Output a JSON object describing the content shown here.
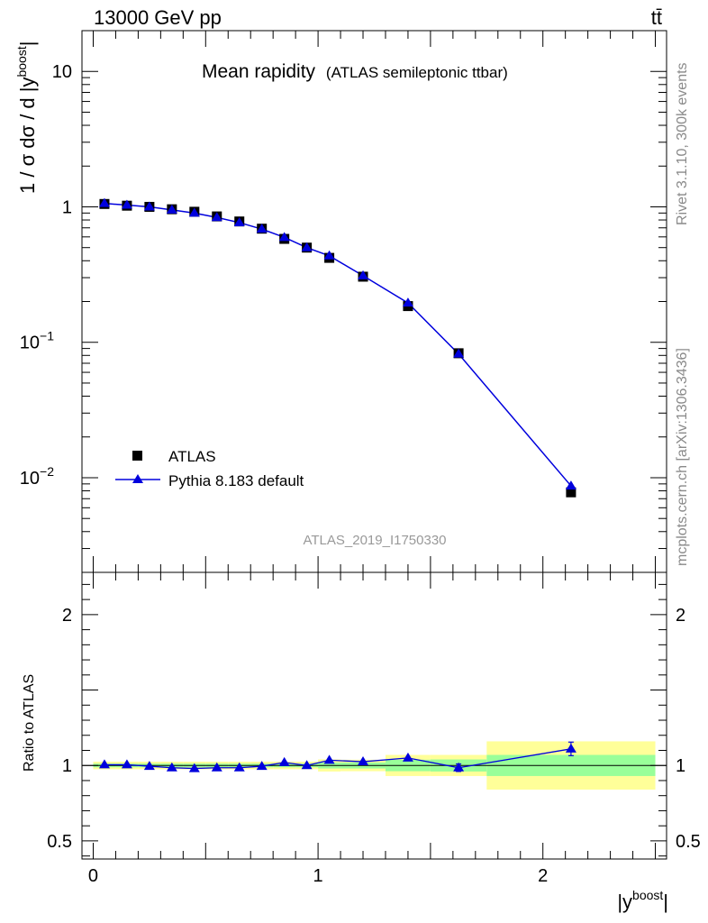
{
  "header": {
    "left": "13000 GeV pp",
    "right": "tt̄"
  },
  "side_labels": {
    "version": "Rivet 3.1.10,  300k events",
    "site": "mcplots.cern.ch [arXiv:1306.3436]"
  },
  "colors": {
    "mc": "#0000dd",
    "data": "#000000",
    "band_inner": "#99ff99",
    "band_outer": "#ffff99"
  },
  "chart_data": [
    {
      "type": "scatter",
      "panel": "main",
      "title": "Mean rapidity",
      "subtitle": "(ATLAS semileptonic ttbar)",
      "ylabel": "1 / σ dσ / d |y",
      "ylabel_sup": "boost",
      "yscale": "log",
      "ylim": [
        0.002,
        20
      ],
      "xlim": [
        -0.05,
        2.55
      ],
      "y_ticks": [
        {
          "value": 10,
          "label": "10"
        },
        {
          "value": 1,
          "label": "1"
        },
        {
          "value": 0.1,
          "label": "10",
          "sup": "−1"
        },
        {
          "value": 0.01,
          "label": "10",
          "sup": "−2"
        }
      ],
      "annotation": "ATLAS_2019_I1750330",
      "legend_position": "lower-left",
      "series": [
        {
          "name": "ATLAS",
          "marker": "square",
          "x": [
            0.05,
            0.15,
            0.25,
            0.35,
            0.45,
            0.55,
            0.65,
            0.75,
            0.85,
            0.95,
            1.05,
            1.2,
            1.4,
            1.625,
            2.125
          ],
          "y": [
            1.05,
            1.02,
            1.0,
            0.96,
            0.92,
            0.85,
            0.78,
            0.69,
            0.58,
            0.5,
            0.42,
            0.305,
            0.185,
            0.083,
            0.0078
          ]
        },
        {
          "name": "Pythia 8.183 default",
          "marker": "triangle",
          "x": [
            0.05,
            0.15,
            0.25,
            0.35,
            0.45,
            0.55,
            0.65,
            0.75,
            0.85,
            0.95,
            1.05,
            1.2,
            1.4,
            1.625,
            2.125
          ],
          "y": [
            1.06,
            1.03,
            1.0,
            0.95,
            0.9,
            0.835,
            0.765,
            0.685,
            0.595,
            0.5,
            0.435,
            0.31,
            0.195,
            0.082,
            0.0087
          ]
        }
      ]
    },
    {
      "type": "line",
      "panel": "ratio",
      "ylabel": "Ratio to ATLAS",
      "xlabel": "|y",
      "xlabel_sup": "boost",
      "xlabel_suffix": "|",
      "ylim": [
        0.38,
        2.28
      ],
      "xlim": [
        -0.05,
        2.55
      ],
      "x_ticks": [
        {
          "value": 0,
          "label": "0"
        },
        {
          "value": 1,
          "label": "1"
        },
        {
          "value": 2,
          "label": "2"
        }
      ],
      "y_ticks": [
        {
          "value": 0.5,
          "label": "0.5"
        },
        {
          "value": 1,
          "label": "1"
        },
        {
          "value": 2,
          "label": "2"
        }
      ],
      "bins": [
        0.0,
        0.1,
        0.2,
        0.3,
        0.4,
        0.5,
        0.6,
        0.7,
        0.8,
        0.9,
        1.0,
        1.1,
        1.3,
        1.5,
        1.75,
        2.5
      ],
      "band_inner": [
        0.012,
        0.012,
        0.012,
        0.012,
        0.012,
        0.012,
        0.012,
        0.012,
        0.012,
        0.012,
        0.02,
        0.02,
        0.038,
        0.04,
        0.07
      ],
      "band_outer": [
        0.025,
        0.025,
        0.025,
        0.025,
        0.025,
        0.025,
        0.025,
        0.025,
        0.025,
        0.025,
        0.04,
        0.038,
        0.07,
        0.07,
        0.16
      ],
      "series": [
        {
          "name": "Pythia 8.183 default",
          "x": [
            0.05,
            0.15,
            0.25,
            0.35,
            0.45,
            0.55,
            0.65,
            0.75,
            0.85,
            0.95,
            1.05,
            1.2,
            1.4,
            1.625,
            2.125
          ],
          "y": [
            1.005,
            1.005,
            0.995,
            0.985,
            0.98,
            0.985,
            0.985,
            0.995,
            1.02,
            1.0,
            1.035,
            1.025,
            1.05,
            0.985,
            1.11
          ],
          "err": [
            0.008,
            0.008,
            0.008,
            0.008,
            0.008,
            0.008,
            0.008,
            0.008,
            0.01,
            0.01,
            0.02,
            0.015,
            0.02,
            0.025,
            0.045
          ]
        }
      ]
    }
  ]
}
